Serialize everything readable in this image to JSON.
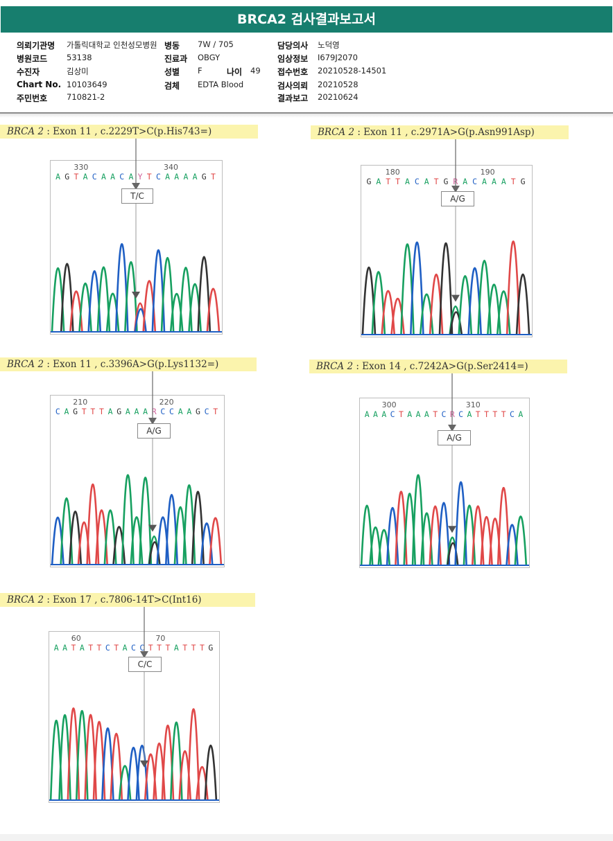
{
  "report": {
    "title": "BRCA2 검사결과보고서"
  },
  "patient_info": {
    "left": [
      {
        "label": "의뢰기관명",
        "value": "가톨릭대학교 인천성모병원"
      },
      {
        "label": "병원코드",
        "value": "53138"
      },
      {
        "label": "수진자",
        "value": "김상미"
      },
      {
        "label": "Chart No.",
        "value": "10103649"
      },
      {
        "label": "주민번호",
        "value": "710821-2"
      }
    ],
    "middle": [
      {
        "label": "병동",
        "value": "7W / 705"
      },
      {
        "label": "진료과",
        "value": "OBGY"
      },
      {
        "label": "성별",
        "value": "F"
      },
      {
        "label": "검체",
        "value": "EDTA Blood"
      }
    ],
    "age": {
      "label": "나이",
      "value": "49"
    },
    "right": [
      {
        "label": "담당의사",
        "value": "노덕영"
      },
      {
        "label": "임상정보",
        "value": "I679J2070"
      },
      {
        "label": "접수번호",
        "value": "20210528-14501"
      },
      {
        "label": "검사의뢰",
        "value": "20210528"
      },
      {
        "label": "결과보고",
        "value": "20210624"
      }
    ]
  },
  "variants": [
    {
      "gene": "BRCA 2",
      "detail": ": Exon 11 , c.2229T>C(p.His743=)",
      "pos_left": "330",
      "pos_right": "340",
      "sequence": "AGTACAACAYTCAAAAGT",
      "genotype": "T/C",
      "colors": {
        "A": "#17a060",
        "C": "#1f5fc4",
        "G": "#333333",
        "T": "#e04848",
        "Y": "#d0609a",
        "R": "#d0609a"
      }
    },
    {
      "gene": "BRCA 2",
      "detail": ": Exon 11 , c.2971A>G(p.Asn991Asp)",
      "pos_left": "180",
      "pos_right": "190",
      "sequence": "GATTACATGRACAAATG",
      "genotype": "A/G"
    },
    {
      "gene": "BRCA 2",
      "detail": ": Exon 11 , c.3396A>G(p.Lys1132=)",
      "pos_left": "210",
      "pos_right": "220",
      "sequence": "CAGTTTAGAAARCCAAGCT",
      "genotype": "A/G"
    },
    {
      "gene": "BRCA 2",
      "detail": ": Exon 14 , c.7242A>G(p.Ser2414=)",
      "pos_left": "300",
      "pos_right": "310",
      "sequence": "AAACTAAATCRCATTTTCA",
      "genotype": "A/G"
    },
    {
      "gene": "BRCA 2",
      "detail": ": Exon 17 , c.7806-14T>C(Int16)",
      "pos_left": "60",
      "pos_right": "70",
      "sequence": "AATATTCTACCTTTATTTG",
      "genotype": "C/C"
    }
  ]
}
